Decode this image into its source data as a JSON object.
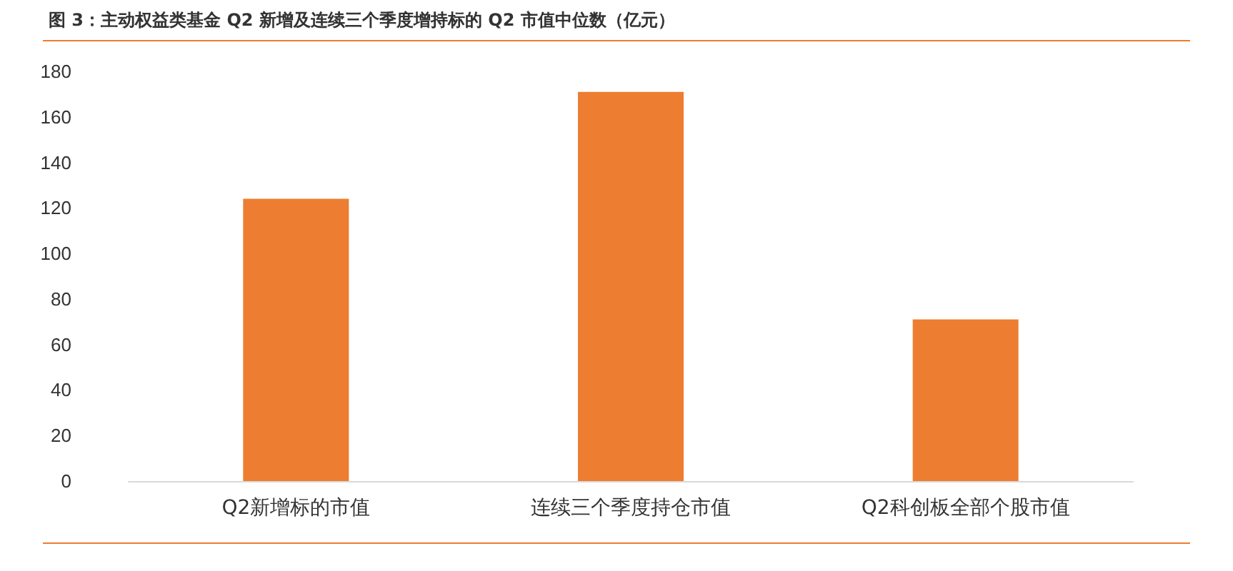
{
  "chart_data": {
    "type": "bar",
    "title": "图 3：主动权益类基金 Q2 新增及连续三个季度增持标的 Q2 市值中位数（亿元）",
    "categories": [
      "Q2新增标的市值",
      "连续三个季度持仓市值",
      "Q2科创板全部个股市值"
    ],
    "values": [
      124,
      171,
      71
    ],
    "color": "#ed7d31",
    "ylim": [
      0,
      180
    ],
    "yticks": [
      0,
      20,
      40,
      60,
      80,
      100,
      120,
      140,
      160,
      180
    ],
    "grid": false
  }
}
